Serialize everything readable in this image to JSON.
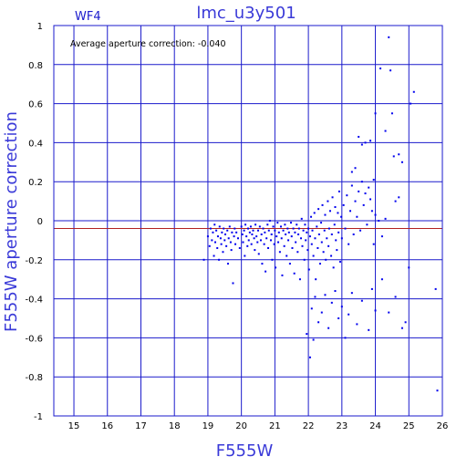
{
  "chart_data": {
    "type": "scatter",
    "title": "lmc_u3y501",
    "panel_label": "WF4",
    "annotation": "Average aperture correction:  -0.040",
    "xlabel": "F555W",
    "ylabel": "F555W aperture correction",
    "xlim": [
      14.4,
      26
    ],
    "ylim": [
      -1,
      1
    ],
    "x_ticks": [
      "15",
      "16",
      "17",
      "18",
      "19",
      "20",
      "21",
      "22",
      "23",
      "24",
      "25",
      "26"
    ],
    "y_ticks": [
      "-1",
      "-0.8",
      "-0.6",
      "-0.4",
      "-0.2",
      "0",
      "0.2",
      "0.4",
      "0.6",
      "0.8",
      "1"
    ],
    "grid": true,
    "reference_line_y": -0.04,
    "colors": {
      "points": "#0000ee",
      "grid": "#1a1acc",
      "axis_text": "#3a3ad8",
      "reference_line": "#b22222"
    },
    "points": [
      [
        18.88,
        -0.2
      ],
      [
        19.0,
        -0.08
      ],
      [
        19.05,
        -0.13
      ],
      [
        19.08,
        -0.04
      ],
      [
        19.12,
        -0.1
      ],
      [
        19.15,
        -0.06
      ],
      [
        19.18,
        -0.18
      ],
      [
        19.2,
        -0.02
      ],
      [
        19.22,
        -0.11
      ],
      [
        19.25,
        -0.05
      ],
      [
        19.28,
        -0.14
      ],
      [
        19.3,
        -0.08
      ],
      [
        19.33,
        -0.2
      ],
      [
        19.35,
        -0.03
      ],
      [
        19.38,
        -0.09
      ],
      [
        19.4,
        -0.12
      ],
      [
        19.42,
        -0.06
      ],
      [
        19.45,
        -0.16
      ],
      [
        19.47,
        -0.04
      ],
      [
        19.5,
        -0.1
      ],
      [
        19.52,
        -0.07
      ],
      [
        19.55,
        -0.13
      ],
      [
        19.58,
        -0.05
      ],
      [
        19.6,
        -0.22
      ],
      [
        19.62,
        -0.09
      ],
      [
        19.65,
        -0.03
      ],
      [
        19.68,
        -0.11
      ],
      [
        19.7,
        -0.15
      ],
      [
        19.72,
        -0.06
      ],
      [
        19.75,
        -0.32
      ],
      [
        19.78,
        -0.08
      ],
      [
        19.8,
        -0.04
      ],
      [
        19.82,
        -0.12
      ],
      [
        19.85,
        -0.06
      ],
      [
        19.9,
        -0.09
      ],
      [
        19.95,
        -0.14
      ],
      [
        20.0,
        -0.03
      ],
      [
        20.03,
        -0.07
      ],
      [
        20.05,
        -0.11
      ],
      [
        20.08,
        -0.05
      ],
      [
        20.1,
        -0.18
      ],
      [
        20.12,
        -0.02
      ],
      [
        20.15,
        -0.08
      ],
      [
        20.18,
        -0.13
      ],
      [
        20.2,
        -0.04
      ],
      [
        20.22,
        -0.1
      ],
      [
        20.25,
        -0.06
      ],
      [
        20.28,
        -0.03
      ],
      [
        20.3,
        -0.12
      ],
      [
        20.32,
        -0.07
      ],
      [
        20.35,
        -0.05
      ],
      [
        20.38,
        -0.09
      ],
      [
        20.4,
        -0.15
      ],
      [
        20.42,
        -0.02
      ],
      [
        20.45,
        -0.08
      ],
      [
        20.48,
        -0.11
      ],
      [
        20.5,
        -0.05
      ],
      [
        20.52,
        -0.17
      ],
      [
        20.55,
        -0.03
      ],
      [
        20.58,
        -0.1
      ],
      [
        20.6,
        -0.07
      ],
      [
        20.62,
        -0.22
      ],
      [
        20.65,
        -0.04
      ],
      [
        20.68,
        -0.12
      ],
      [
        20.7,
        -0.06
      ],
      [
        20.72,
        -0.26
      ],
      [
        20.75,
        -0.09
      ],
      [
        20.78,
        -0.02
      ],
      [
        20.8,
        -0.14
      ],
      [
        20.82,
        -0.05
      ],
      [
        20.85,
        0.0
      ],
      [
        20.88,
        -0.1
      ],
      [
        20.9,
        -0.07
      ],
      [
        20.92,
        -0.2
      ],
      [
        20.95,
        -0.03
      ],
      [
        20.98,
        -0.12
      ],
      [
        21.0,
        -0.05
      ],
      [
        21.02,
        -0.24
      ],
      [
        21.05,
        -0.08
      ],
      [
        21.08,
        -0.01
      ],
      [
        21.1,
        -0.11
      ],
      [
        21.12,
        -0.06
      ],
      [
        21.15,
        -0.16
      ],
      [
        21.18,
        -0.03
      ],
      [
        21.2,
        -0.09
      ],
      [
        21.22,
        -0.28
      ],
      [
        21.25,
        -0.05
      ],
      [
        21.28,
        -0.13
      ],
      [
        21.3,
        -0.02
      ],
      [
        21.32,
        -0.07
      ],
      [
        21.35,
        -0.18
      ],
      [
        21.38,
        -0.04
      ],
      [
        21.4,
        -0.1
      ],
      [
        21.42,
        -0.06
      ],
      [
        21.45,
        -0.22
      ],
      [
        21.48,
        -0.01
      ],
      [
        21.5,
        -0.08
      ],
      [
        21.52,
        -0.14
      ],
      [
        21.55,
        -0.04
      ],
      [
        21.58,
        -0.27
      ],
      [
        21.6,
        -0.06
      ],
      [
        21.62,
        -0.11
      ],
      [
        21.65,
        -0.02
      ],
      [
        21.68,
        -0.16
      ],
      [
        21.7,
        -0.07
      ],
      [
        21.72,
        -0.04
      ],
      [
        21.75,
        -0.3
      ],
      [
        21.78,
        -0.09
      ],
      [
        21.8,
        0.01
      ],
      [
        21.82,
        -0.13
      ],
      [
        21.85,
        -0.05
      ],
      [
        21.88,
        -0.2
      ],
      [
        21.9,
        -0.02
      ],
      [
        21.92,
        -0.1
      ],
      [
        21.95,
        -0.06
      ],
      [
        21.98,
        -0.15
      ],
      [
        22.0,
        -0.04
      ],
      [
        22.02,
        -0.25
      ],
      [
        22.05,
        -0.08
      ],
      [
        22.08,
        0.02
      ],
      [
        22.1,
        -0.12
      ],
      [
        22.12,
        -0.05
      ],
      [
        22.15,
        -0.18
      ],
      [
        22.18,
        0.04
      ],
      [
        22.2,
        -0.09
      ],
      [
        22.22,
        -0.3
      ],
      [
        22.25,
        -0.03
      ],
      [
        22.28,
        -0.14
      ],
      [
        22.3,
        0.06
      ],
      [
        22.32,
        -0.07
      ],
      [
        22.35,
        -0.22
      ],
      [
        22.38,
        -0.01
      ],
      [
        22.4,
        -0.11
      ],
      [
        22.42,
        0.08
      ],
      [
        22.45,
        -0.16
      ],
      [
        22.48,
        -0.05
      ],
      [
        22.5,
        0.03
      ],
      [
        22.52,
        -0.2
      ],
      [
        22.55,
        -0.09
      ],
      [
        22.58,
        0.1
      ],
      [
        22.6,
        -0.13
      ],
      [
        22.62,
        -0.04
      ],
      [
        22.65,
        0.05
      ],
      [
        22.68,
        -0.18
      ],
      [
        22.7,
        -0.07
      ],
      [
        22.72,
        0.12
      ],
      [
        22.75,
        -0.24
      ],
      [
        22.78,
        -0.02
      ],
      [
        22.8,
        0.07
      ],
      [
        22.82,
        -0.1
      ],
      [
        22.85,
        -0.15
      ],
      [
        22.88,
        0.04
      ],
      [
        22.9,
        -0.06
      ],
      [
        22.92,
        0.15
      ],
      [
        22.95,
        -0.21
      ],
      [
        22.98,
        0.02
      ],
      [
        23.0,
        -0.09
      ],
      [
        23.05,
        0.08
      ],
      [
        23.1,
        -0.04
      ],
      [
        23.15,
        0.13
      ],
      [
        23.2,
        -0.12
      ],
      [
        23.25,
        0.05
      ],
      [
        23.3,
        0.18
      ],
      [
        23.35,
        -0.07
      ],
      [
        23.4,
        0.1
      ],
      [
        23.45,
        0.02
      ],
      [
        23.5,
        0.15
      ],
      [
        23.55,
        -0.05
      ],
      [
        23.6,
        0.2
      ],
      [
        23.65,
        0.08
      ],
      [
        23.7,
        0.14
      ],
      [
        23.75,
        -0.02
      ],
      [
        23.8,
        0.17
      ],
      [
        23.85,
        0.11
      ],
      [
        23.9,
        0.05
      ],
      [
        23.95,
        -0.12
      ],
      [
        24.0,
        0.03
      ],
      [
        24.1,
        0.0
      ],
      [
        24.2,
        -0.08
      ],
      [
        24.3,
        0.01
      ],
      [
        21.95,
        -0.58
      ],
      [
        22.05,
        -0.7
      ],
      [
        22.1,
        -0.45
      ],
      [
        22.15,
        -0.61
      ],
      [
        22.2,
        -0.39
      ],
      [
        22.3,
        -0.52
      ],
      [
        22.4,
        -0.47
      ],
      [
        22.5,
        -0.38
      ],
      [
        22.6,
        -0.55
      ],
      [
        22.7,
        -0.42
      ],
      [
        22.8,
        -0.36
      ],
      [
        22.9,
        -0.5
      ],
      [
        23.0,
        -0.44
      ],
      [
        23.1,
        -0.6
      ],
      [
        23.2,
        -0.48
      ],
      [
        23.3,
        -0.37
      ],
      [
        23.45,
        -0.53
      ],
      [
        23.6,
        -0.41
      ],
      [
        23.8,
        -0.56
      ],
      [
        23.9,
        -0.35
      ],
      [
        24.0,
        -0.46
      ],
      [
        24.2,
        -0.3
      ],
      [
        24.4,
        -0.47
      ],
      [
        24.6,
        -0.39
      ],
      [
        24.8,
        -0.55
      ],
      [
        24.9,
        -0.52
      ],
      [
        25.0,
        -0.24
      ],
      [
        25.8,
        -0.35
      ],
      [
        25.85,
        -0.87
      ],
      [
        23.3,
        0.25
      ],
      [
        23.4,
        0.27
      ],
      [
        23.5,
        0.43
      ],
      [
        23.6,
        0.39
      ],
      [
        23.7,
        0.4
      ],
      [
        23.85,
        0.41
      ],
      [
        24.0,
        0.55
      ],
      [
        24.3,
        0.46
      ],
      [
        24.5,
        0.55
      ],
      [
        24.7,
        0.34
      ],
      [
        24.8,
        0.3
      ],
      [
        24.6,
        0.1
      ],
      [
        24.7,
        0.12
      ],
      [
        24.4,
        0.94
      ],
      [
        24.15,
        0.78
      ],
      [
        24.45,
        0.77
      ],
      [
        25.05,
        0.6
      ],
      [
        25.15,
        0.66
      ],
      [
        24.55,
        0.33
      ],
      [
        23.95,
        0.21
      ]
    ]
  }
}
